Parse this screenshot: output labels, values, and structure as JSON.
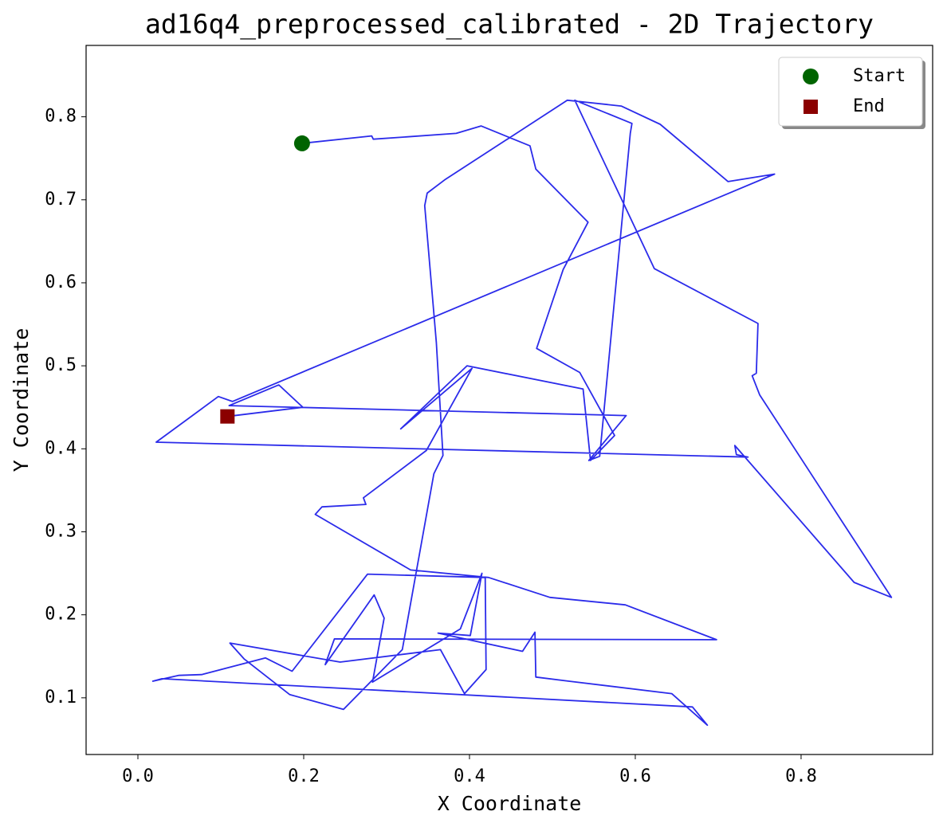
{
  "chart_data": {
    "type": "line",
    "title": "ad16q4_preprocessed_calibrated - 2D Trajectory",
    "x_label": "X Coordinate",
    "y_label": "Y Coordinate",
    "xlim": [
      -0.0625,
      0.9587
    ],
    "ylim": [
      0.0317,
      0.886
    ],
    "xticks": [
      {
        "value": 0,
        "label": "0.0"
      },
      0.2,
      0.4,
      0.6,
      0.8
    ],
    "yticks": [
      0.1,
      0.2,
      0.3,
      0.4,
      0.5,
      0.6,
      0.7,
      0.8
    ],
    "grid": false,
    "legend": "upper right",
    "line_color": "#2b2bea",
    "x": [
      0.198,
      0.282,
      0.284,
      0.384,
      0.414,
      0.473,
      0.48,
      0.543,
      0.513,
      0.481,
      0.533,
      0.575,
      0.546,
      0.537,
      0.397,
      0.317,
      0.403,
      0.348,
      0.272,
      0.275,
      0.222,
      0.214,
      0.329,
      0.423,
      0.497,
      0.588,
      0.698,
      0.237,
      0.226,
      0.285,
      0.297,
      0.283,
      0.389,
      0.415,
      0.401,
      0.362,
      0.464,
      0.479,
      0.48,
      0.52,
      0.644,
      0.687,
      0.669,
      0.029,
      0.018,
      0.049,
      0.077,
      0.154,
      0.186,
      0.277,
      0.419,
      0.42,
      0.394,
      0.365,
      0.244,
      0.111,
      0.128,
      0.183,
      0.248,
      0.319,
      0.357,
      0.368,
      0.36,
      0.346,
      0.349,
      0.37,
      0.518,
      0.583,
      0.63,
      0.712,
      0.768,
      0.114,
      0.097,
      0.022,
      0.736,
      0.722,
      0.72,
      0.864,
      0.909,
      0.75,
      0.741,
      0.746,
      0.748,
      0.623,
      0.527,
      0.596,
      0.594,
      0.557,
      0.544,
      0.589,
      0.11,
      0.17,
      0.199,
      0.108
    ],
    "y": [
      0.768,
      0.777,
      0.773,
      0.78,
      0.789,
      0.765,
      0.737,
      0.673,
      0.616,
      0.521,
      0.492,
      0.416,
      0.386,
      0.472,
      0.5,
      0.424,
      0.497,
      0.398,
      0.341,
      0.333,
      0.33,
      0.321,
      0.254,
      0.245,
      0.221,
      0.212,
      0.17,
      0.171,
      0.14,
      0.224,
      0.196,
      0.119,
      0.183,
      0.25,
      0.175,
      0.178,
      0.156,
      0.179,
      0.125,
      0.12,
      0.105,
      0.067,
      0.089,
      0.123,
      0.12,
      0.127,
      0.128,
      0.148,
      0.132,
      0.249,
      0.245,
      0.134,
      0.105,
      0.158,
      0.143,
      0.166,
      0.147,
      0.104,
      0.086,
      0.158,
      0.37,
      0.392,
      0.528,
      0.693,
      0.708,
      0.724,
      0.82,
      0.813,
      0.791,
      0.722,
      0.731,
      0.457,
      0.463,
      0.408,
      0.39,
      0.393,
      0.404,
      0.239,
      0.221,
      0.465,
      0.488,
      0.491,
      0.551,
      0.617,
      0.82,
      0.792,
      0.78,
      0.391,
      0.386,
      0.44,
      0.452,
      0.477,
      0.45,
      0.439
    ],
    "markers": [
      {
        "name": "Start",
        "x": 0.198,
        "y": 0.768,
        "color": "#006400",
        "shape": "circle"
      },
      {
        "name": "End",
        "x": 0.108,
        "y": 0.439,
        "color": "#8b0000",
        "shape": "square"
      }
    ]
  }
}
